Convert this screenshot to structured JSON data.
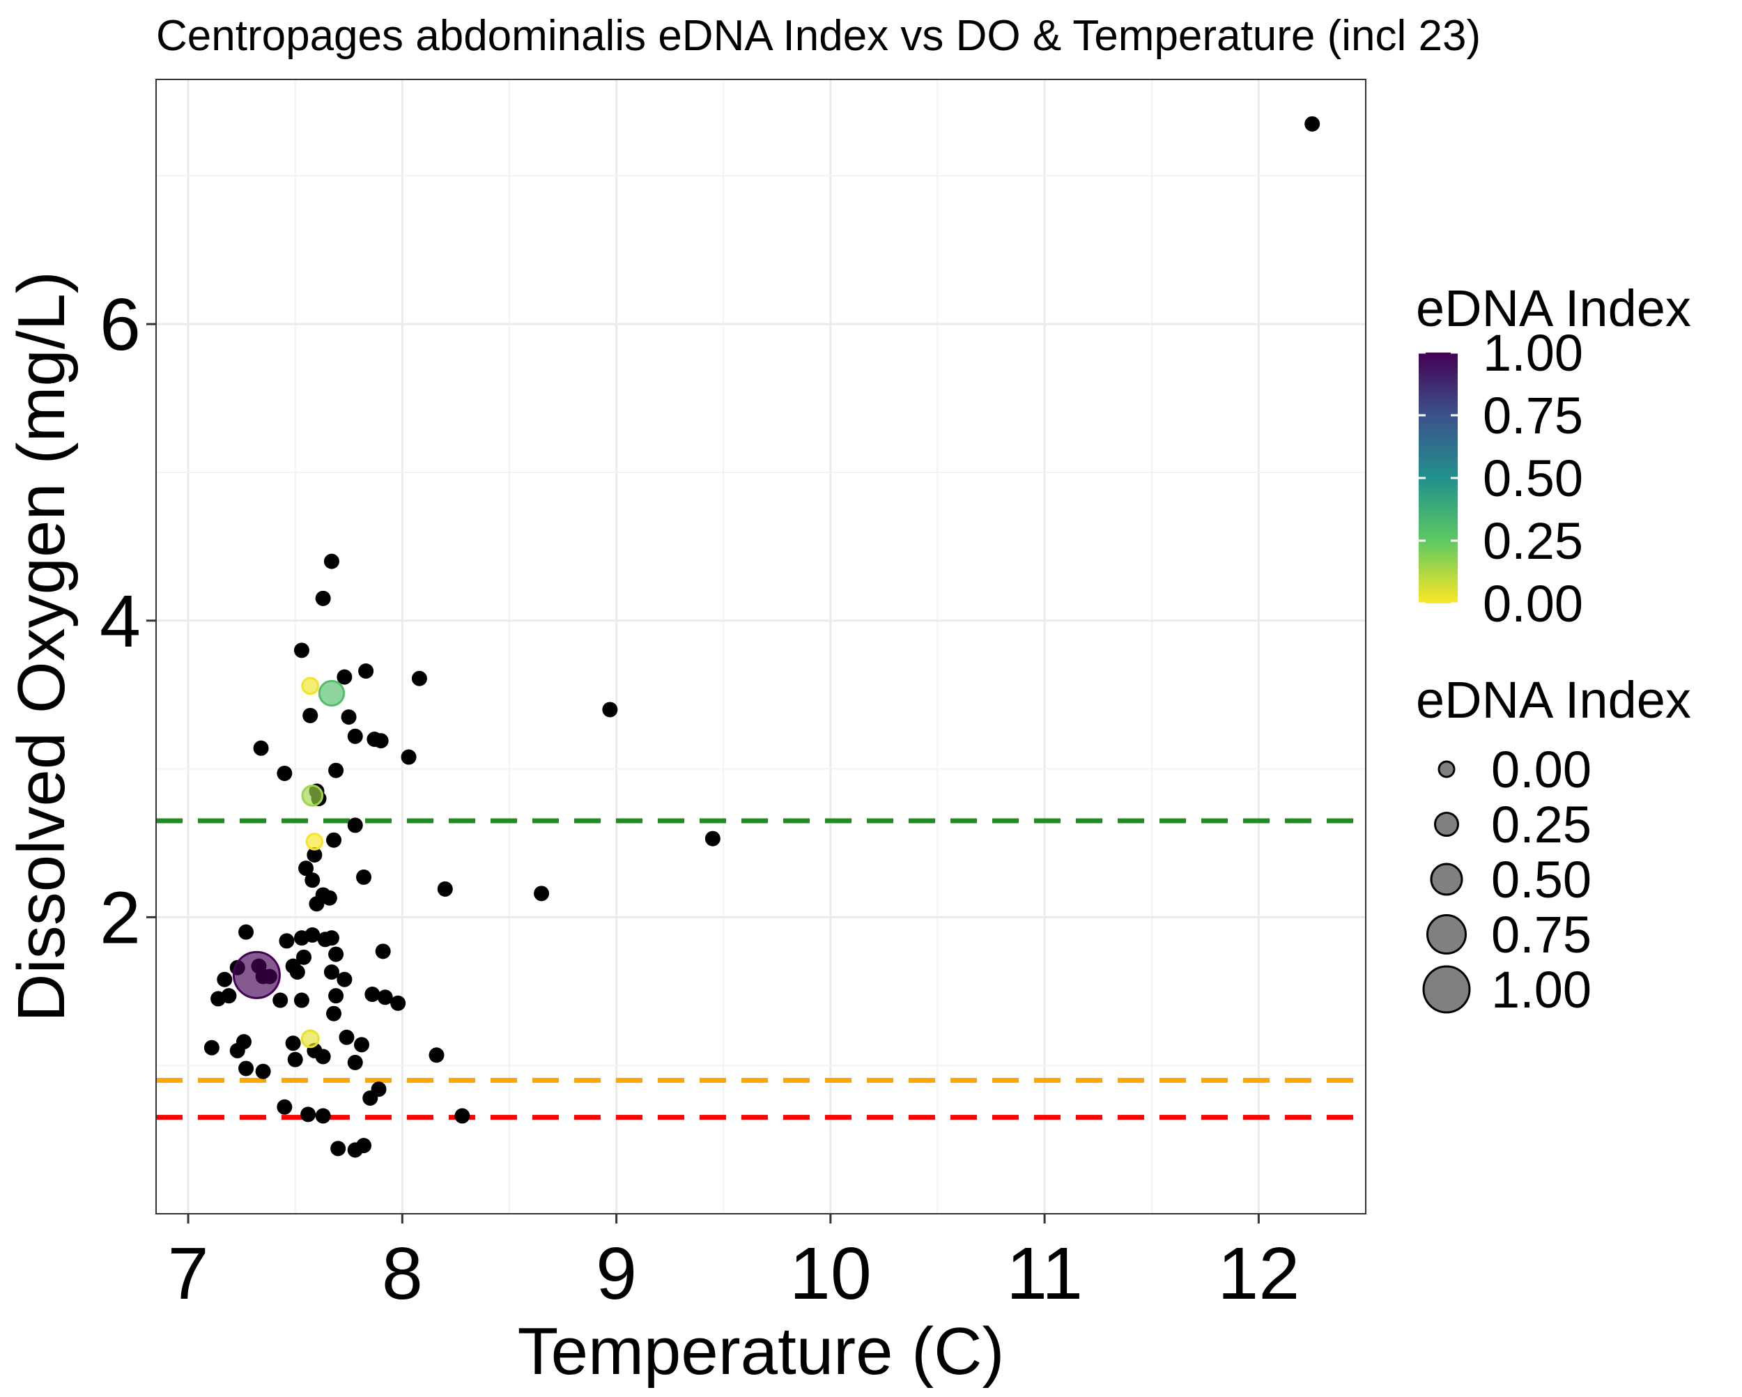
{
  "chart_data": {
    "type": "scatter",
    "title": "Centropages abdominalis eDNA Index vs DO & Temperature (incl 23)",
    "xlabel": "Temperature (C)",
    "ylabel": "Dissolved Oxygen (mg/L)",
    "xlim": [
      6.85,
      12.5
    ],
    "ylim": [
      0.0,
      7.65
    ],
    "x_ticks": [
      7,
      8,
      9,
      10,
      11,
      12
    ],
    "y_ticks": [
      2,
      4,
      6
    ],
    "grid": true,
    "legend_position": "right",
    "legends": {
      "color": {
        "title": "eDNA Index",
        "labels": [
          "1.00",
          "0.75",
          "0.50",
          "0.25",
          "0.00"
        ],
        "values": [
          1.0,
          0.75,
          0.5,
          0.25,
          0.0
        ],
        "colormap": "viridis"
      },
      "size": {
        "title": "eDNA Index",
        "labels": [
          "0.00",
          "0.25",
          "0.50",
          "0.75",
          "1.00"
        ],
        "values": [
          0.0,
          0.25,
          0.5,
          0.75,
          1.0
        ]
      }
    },
    "hlines": [
      {
        "y": 2.65,
        "color": "#228B22",
        "style": "dashed"
      },
      {
        "y": 0.9,
        "color": "#FFA500",
        "style": "dashed"
      },
      {
        "y": 0.65,
        "color": "#FF0000",
        "style": "dashed"
      }
    ],
    "series": [
      {
        "points_na": [
          [
            12.25,
            7.35
          ],
          [
            7.67,
            4.4
          ],
          [
            7.63,
            4.15
          ],
          [
            7.53,
            3.8
          ],
          [
            7.83,
            3.66
          ],
          [
            7.73,
            3.62
          ],
          [
            8.08,
            3.61
          ],
          [
            7.57,
            3.36
          ],
          [
            7.75,
            3.35
          ],
          [
            7.78,
            3.22
          ],
          [
            7.87,
            3.2
          ],
          [
            7.9,
            3.19
          ],
          [
            7.34,
            3.14
          ],
          [
            8.03,
            3.08
          ],
          [
            7.69,
            2.99
          ],
          [
            7.45,
            2.97
          ],
          [
            8.97,
            3.4
          ],
          [
            7.6,
            2.85
          ],
          [
            7.61,
            2.8
          ],
          [
            7.78,
            2.62
          ],
          [
            7.68,
            2.52
          ],
          [
            9.45,
            2.53
          ],
          [
            7.59,
            2.42
          ],
          [
            7.55,
            2.33
          ],
          [
            7.58,
            2.25
          ],
          [
            7.82,
            2.27
          ],
          [
            8.2,
            2.19
          ],
          [
            7.63,
            2.15
          ],
          [
            7.66,
            2.13
          ],
          [
            8.65,
            2.16
          ],
          [
            7.6,
            2.09
          ],
          [
            7.27,
            1.9
          ],
          [
            7.58,
            1.88
          ],
          [
            7.53,
            1.86
          ],
          [
            7.64,
            1.85
          ],
          [
            7.67,
            1.86
          ],
          [
            7.46,
            1.84
          ],
          [
            7.69,
            1.75
          ],
          [
            7.91,
            1.77
          ],
          [
            7.54,
            1.73
          ],
          [
            7.49,
            1.67
          ],
          [
            7.33,
            1.67
          ],
          [
            7.23,
            1.66
          ],
          [
            7.51,
            1.63
          ],
          [
            7.67,
            1.63
          ],
          [
            7.35,
            1.6
          ],
          [
            7.38,
            1.6
          ],
          [
            7.17,
            1.58
          ],
          [
            7.73,
            1.58
          ],
          [
            7.69,
            1.47
          ],
          [
            7.86,
            1.48
          ],
          [
            7.92,
            1.46
          ],
          [
            7.14,
            1.45
          ],
          [
            7.19,
            1.47
          ],
          [
            7.43,
            1.44
          ],
          [
            7.53,
            1.44
          ],
          [
            7.98,
            1.42
          ],
          [
            7.68,
            1.35
          ],
          [
            7.74,
            1.19
          ],
          [
            7.49,
            1.15
          ],
          [
            7.81,
            1.14
          ],
          [
            7.11,
            1.12
          ],
          [
            7.26,
            1.16
          ],
          [
            7.23,
            1.1
          ],
          [
            7.59,
            1.1
          ],
          [
            7.63,
            1.06
          ],
          [
            8.16,
            1.07
          ],
          [
            7.5,
            1.04
          ],
          [
            7.78,
            1.02
          ],
          [
            7.27,
            0.98
          ],
          [
            7.35,
            0.96
          ],
          [
            7.89,
            0.84
          ],
          [
            7.85,
            0.78
          ],
          [
            7.45,
            0.72
          ],
          [
            7.56,
            0.67
          ],
          [
            7.63,
            0.66
          ],
          [
            8.28,
            0.66
          ],
          [
            7.7,
            0.44
          ],
          [
            7.78,
            0.43
          ],
          [
            7.82,
            0.46
          ]
        ]
      },
      {
        "points": [
          {
            "x": 7.32,
            "y": 1.61,
            "index": 1.0
          },
          {
            "x": 7.67,
            "y": 3.51,
            "index": 0.3
          },
          {
            "x": 7.58,
            "y": 2.82,
            "index": 0.15
          },
          {
            "x": 7.57,
            "y": 3.56,
            "index": 0.02
          },
          {
            "x": 7.59,
            "y": 2.51,
            "index": 0.01
          },
          {
            "x": 7.57,
            "y": 1.18,
            "index": 0.04
          }
        ]
      }
    ]
  }
}
